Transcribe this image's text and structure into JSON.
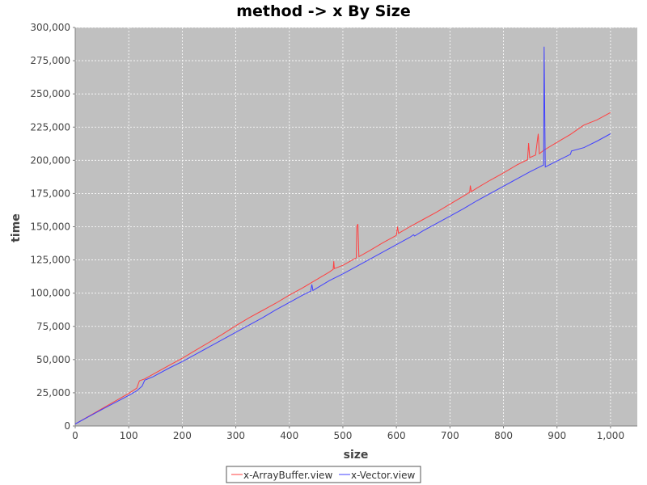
{
  "chart_data": {
    "type": "line",
    "title": "method -> x By Size",
    "xlabel": "size",
    "ylabel": "time",
    "xlim": [
      0,
      1050
    ],
    "ylim": [
      0,
      300000
    ],
    "x_ticks": [
      0,
      100,
      200,
      300,
      400,
      500,
      600,
      700,
      800,
      900,
      1000
    ],
    "x_tick_labels": [
      "0",
      "100",
      "200",
      "300",
      "400",
      "500",
      "600",
      "700",
      "800",
      "900",
      "1,000"
    ],
    "y_ticks": [
      0,
      25000,
      50000,
      75000,
      100000,
      125000,
      150000,
      175000,
      200000,
      225000,
      250000,
      275000,
      300000
    ],
    "y_tick_labels": [
      "0",
      "25,000",
      "50,000",
      "75,000",
      "100,000",
      "125,000",
      "150,000",
      "175,000",
      "200,000",
      "225,000",
      "250,000",
      "275,000",
      "300,000"
    ],
    "grid": true,
    "legend_position": "bottom",
    "plot_background": "#c0c0c0",
    "series": [
      {
        "name": "x-ArrayBuffer.view",
        "color": "#ff4040",
        "points": [
          [
            0,
            1500
          ],
          [
            50,
            13000
          ],
          [
            100,
            24500
          ],
          [
            115,
            28500
          ],
          [
            120,
            34000
          ],
          [
            130,
            35500
          ],
          [
            150,
            40000
          ],
          [
            175,
            45500
          ],
          [
            200,
            51000
          ],
          [
            225,
            57000
          ],
          [
            250,
            63000
          ],
          [
            275,
            69000
          ],
          [
            300,
            75500
          ],
          [
            325,
            81500
          ],
          [
            350,
            87000
          ],
          [
            375,
            92500
          ],
          [
            400,
            98500
          ],
          [
            425,
            104000
          ],
          [
            450,
            110000
          ],
          [
            475,
            116000
          ],
          [
            482,
            118000
          ],
          [
            483,
            124000
          ],
          [
            484,
            118500
          ],
          [
            500,
            121000
          ],
          [
            520,
            125500
          ],
          [
            525,
            126500
          ],
          [
            526,
            150000
          ],
          [
            528,
            152000
          ],
          [
            530,
            127500
          ],
          [
            550,
            132000
          ],
          [
            575,
            138000
          ],
          [
            600,
            143500
          ],
          [
            602,
            150000
          ],
          [
            604,
            145000
          ],
          [
            625,
            150000
          ],
          [
            650,
            155500
          ],
          [
            675,
            161000
          ],
          [
            700,
            167000
          ],
          [
            725,
            173000
          ],
          [
            737,
            176000
          ],
          [
            738,
            181000
          ],
          [
            740,
            176500
          ],
          [
            750,
            179000
          ],
          [
            775,
            185000
          ],
          [
            800,
            190500
          ],
          [
            825,
            196500
          ],
          [
            845,
            200500
          ],
          [
            847,
            213000
          ],
          [
            849,
            202000
          ],
          [
            860,
            204000
          ],
          [
            865,
            220000
          ],
          [
            867,
            205000
          ],
          [
            875,
            207500
          ],
          [
            900,
            213500
          ],
          [
            925,
            219500
          ],
          [
            950,
            226500
          ],
          [
            975,
            230500
          ],
          [
            1000,
            236000
          ]
        ]
      },
      {
        "name": "x-Vector.view",
        "color": "#4040ff",
        "points": [
          [
            0,
            1500
          ],
          [
            50,
            12500
          ],
          [
            100,
            23000
          ],
          [
            115,
            26500
          ],
          [
            125,
            30000
          ],
          [
            130,
            34500
          ],
          [
            145,
            37000
          ],
          [
            175,
            43500
          ],
          [
            200,
            48500
          ],
          [
            225,
            54000
          ],
          [
            250,
            59500
          ],
          [
            275,
            65000
          ],
          [
            300,
            70500
          ],
          [
            325,
            76000
          ],
          [
            350,
            81500
          ],
          [
            375,
            87500
          ],
          [
            400,
            93000
          ],
          [
            425,
            98500
          ],
          [
            440,
            101500
          ],
          [
            442,
            106500
          ],
          [
            444,
            102000
          ],
          [
            450,
            103500
          ],
          [
            475,
            109500
          ],
          [
            500,
            114500
          ],
          [
            525,
            120000
          ],
          [
            550,
            125500
          ],
          [
            575,
            131000
          ],
          [
            600,
            136500
          ],
          [
            625,
            142000
          ],
          [
            632,
            144000
          ],
          [
            634,
            143000
          ],
          [
            650,
            147000
          ],
          [
            675,
            152500
          ],
          [
            700,
            158000
          ],
          [
            725,
            163500
          ],
          [
            750,
            169500
          ],
          [
            775,
            175000
          ],
          [
            800,
            180500
          ],
          [
            825,
            186000
          ],
          [
            850,
            191500
          ],
          [
            875,
            196500
          ],
          [
            876,
            285500
          ],
          [
            878,
            195000
          ],
          [
            900,
            199500
          ],
          [
            925,
            204500
          ],
          [
            927,
            207000
          ],
          [
            950,
            209500
          ],
          [
            975,
            214500
          ],
          [
            1000,
            220000
          ]
        ]
      }
    ]
  }
}
